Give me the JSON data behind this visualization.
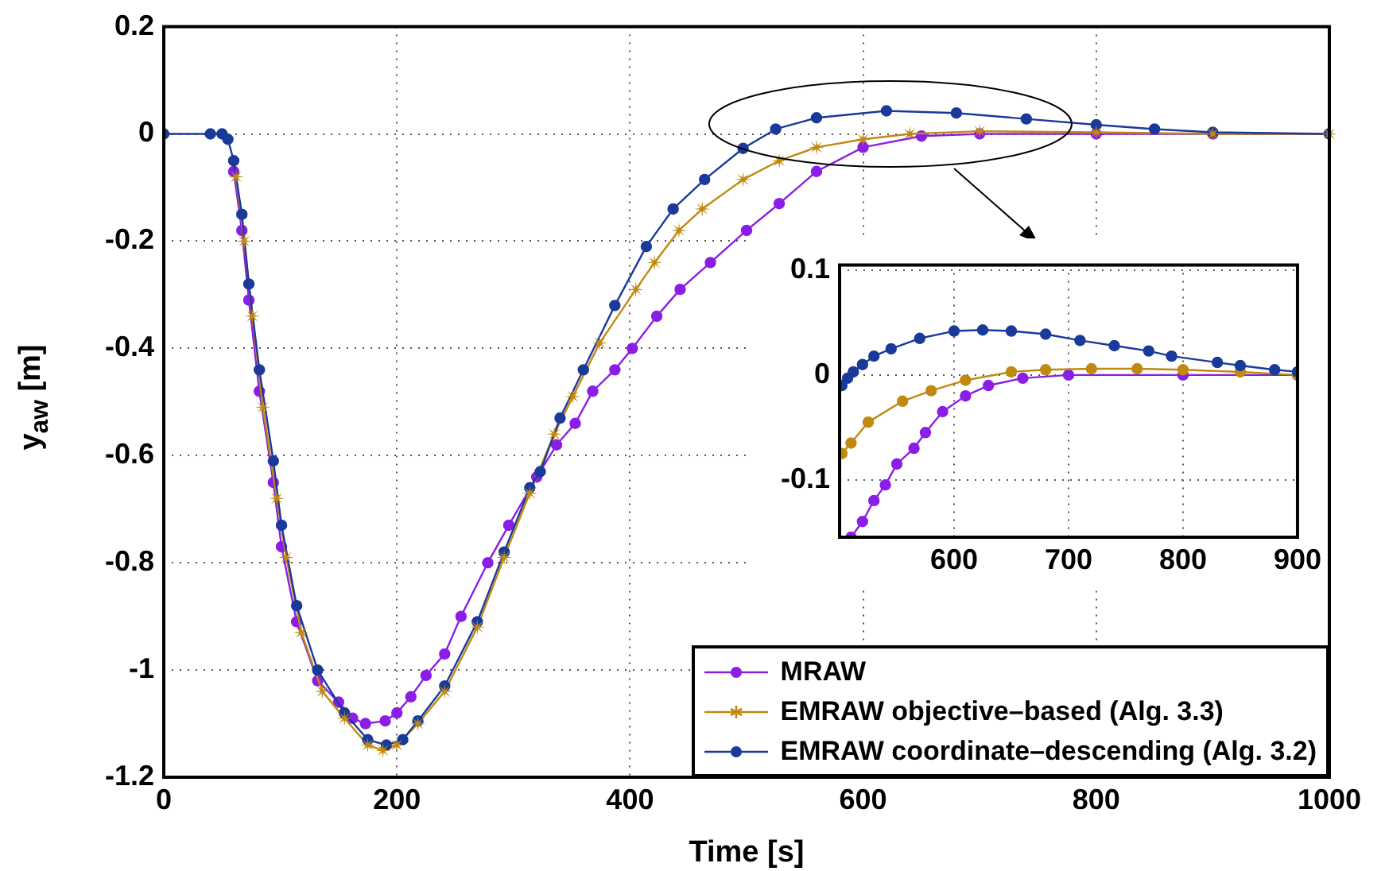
{
  "chart_data": [
    {
      "type": "line",
      "xlabel": "Time [s]",
      "ylabel": "y$_{aw}$ [m]",
      "xlim": [
        0,
        1000
      ],
      "xticks": [
        0,
        200,
        400,
        600,
        800,
        1000
      ],
      "ylim": [
        -1.2,
        0.2
      ],
      "yticks": [
        -1.2,
        -1,
        -0.8,
        -0.6,
        -0.4,
        -0.2,
        0,
        0.2
      ],
      "grid": true,
      "legend": "bottom right",
      "series": [
        {
          "name": "MRAW",
          "color": "#8a1ee6",
          "marker": "circle",
          "x": [
            60,
            67,
            73,
            82,
            94,
            101,
            114,
            132,
            150,
            162,
            173,
            190,
            200,
            212,
            225,
            241,
            255,
            278,
            296,
            320,
            337,
            353,
            368,
            387,
            402,
            423,
            443,
            469,
            500,
            528,
            560,
            600,
            650,
            700,
            800,
            900,
            1000
          ],
          "values": [
            -0.07,
            -0.18,
            -0.31,
            -0.48,
            -0.65,
            -0.77,
            -0.91,
            -1.02,
            -1.06,
            -1.09,
            -1.1,
            -1.095,
            -1.08,
            -1.05,
            -1.01,
            -0.97,
            -0.9,
            -0.8,
            -0.73,
            -0.64,
            -0.58,
            -0.54,
            -0.48,
            -0.44,
            -0.4,
            -0.34,
            -0.29,
            -0.24,
            -0.18,
            -0.13,
            -0.07,
            -0.025,
            -0.004,
            0,
            0,
            0,
            0
          ]
        },
        {
          "name": "EMRAW objective–based (Alg. 3.3)",
          "color": "#c08a10",
          "marker": "star",
          "x": [
            62,
            69,
            76,
            85,
            97,
            105,
            118,
            136,
            155,
            175,
            188,
            200,
            218,
            241,
            269,
            292,
            314,
            335,
            351,
            374,
            405,
            421,
            442,
            462,
            497,
            528,
            560,
            600,
            640,
            700,
            800,
            900,
            1000
          ],
          "values": [
            -0.08,
            -0.2,
            -0.34,
            -0.51,
            -0.68,
            -0.79,
            -0.93,
            -1.04,
            -1.09,
            -1.14,
            -1.15,
            -1.14,
            -1.1,
            -1.04,
            -0.92,
            -0.79,
            -0.67,
            -0.56,
            -0.49,
            -0.39,
            -0.29,
            -0.24,
            -0.18,
            -0.14,
            -0.085,
            -0.05,
            -0.025,
            -0.01,
            0,
            0.005,
            0.003,
            0,
            0
          ]
        },
        {
          "name": "EMRAW coordinate–descending (Alg. 3.2)",
          "color": "#1a3a9a",
          "marker": "circle",
          "x": [
            0,
            40,
            50,
            55,
            60,
            67,
            73,
            82,
            94,
            101,
            114,
            132,
            155,
            175,
            191,
            205,
            218,
            241,
            269,
            292,
            314,
            323,
            340,
            360,
            387,
            414,
            437,
            464,
            497,
            525,
            560,
            620,
            680,
            740,
            800,
            850,
            900,
            1000
          ],
          "values": [
            0,
            0,
            0,
            -0.01,
            -0.05,
            -0.15,
            -0.28,
            -0.44,
            -0.61,
            -0.73,
            -0.88,
            -1.0,
            -1.08,
            -1.13,
            -1.14,
            -1.13,
            -1.095,
            -1.03,
            -0.91,
            -0.78,
            -0.66,
            -0.63,
            -0.53,
            -0.44,
            -0.32,
            -0.21,
            -0.14,
            -0.085,
            -0.027,
            0.009,
            0.03,
            0.043,
            0.039,
            0.028,
            0.017,
            0.009,
            0.003,
            0
          ]
        }
      ]
    },
    {
      "type": "line",
      "xlim": [
        500,
        900
      ],
      "xticks": [
        600,
        700,
        800,
        900
      ],
      "ylim": [
        -0.155,
        0.105
      ],
      "yticks": [
        -0.1,
        0,
        0.1
      ],
      "grid": true,
      "series": [
        {
          "color": "#8a1ee6",
          "marker": "circle",
          "x": [
            510,
            520,
            530,
            540,
            550,
            565,
            575,
            590,
            610,
            630,
            660,
            700,
            800,
            900
          ],
          "values": [
            -0.155,
            -0.14,
            -0.12,
            -0.105,
            -0.085,
            -0.07,
            -0.055,
            -0.035,
            -0.02,
            -0.01,
            -0.003,
            0,
            0,
            0
          ]
        },
        {
          "color": "#c08a10",
          "marker": "circle",
          "x": [
            502,
            510,
            525,
            555,
            580,
            610,
            650,
            680,
            720,
            760,
            800,
            850,
            900
          ],
          "values": [
            -0.075,
            -0.065,
            -0.045,
            -0.025,
            -0.015,
            -0.005,
            0.003,
            0.005,
            0.006,
            0.006,
            0.005,
            0.003,
            0
          ]
        },
        {
          "color": "#1a3a9a",
          "marker": "circle",
          "x": [
            502,
            507,
            512,
            520,
            530,
            545,
            570,
            600,
            625,
            650,
            680,
            710,
            740,
            770,
            790,
            830,
            850,
            880,
            900
          ],
          "values": [
            -0.01,
            -0.003,
            0.003,
            0.01,
            0.018,
            0.025,
            0.035,
            0.042,
            0.043,
            0.042,
            0.039,
            0.033,
            0.028,
            0.023,
            0.018,
            0.012,
            0.009,
            0.005,
            0.003
          ]
        }
      ]
    }
  ]
}
